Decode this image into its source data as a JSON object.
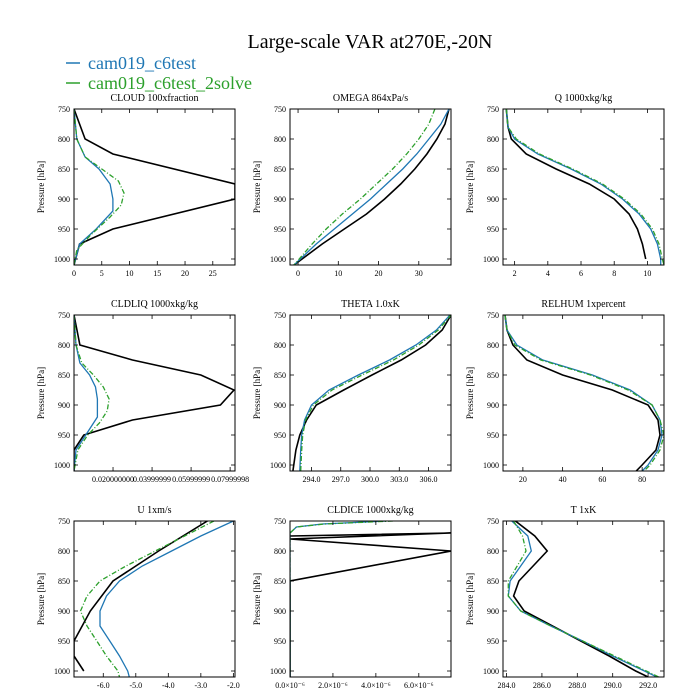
{
  "title": "Large-scale VAR at270E,-20N",
  "legend": [
    {
      "label": "cam019_c6test",
      "color": "#1f77b4"
    },
    {
      "label": "cam019_c6test_2solve",
      "color": "#2ca02c"
    }
  ],
  "black_color": "#000000",
  "chart_data": [
    {
      "type": "line",
      "title": "CLOUD  100xfraction",
      "ylabel": "Pressure [hPa]",
      "ylim": [
        1010,
        750
      ],
      "yticks": [
        750,
        800,
        850,
        900,
        950,
        1000
      ],
      "xlim": [
        0,
        29
      ],
      "xticks": [
        0,
        5,
        10,
        15,
        20,
        25
      ],
      "xticklabels": [
        "0",
        "5",
        "10",
        "15",
        "20",
        "25"
      ],
      "series": [
        {
          "name": "black",
          "p": [
            750,
            800,
            825,
            875,
            900,
            950,
            975,
            1010
          ],
          "x": [
            0,
            2,
            7,
            29,
            29,
            7,
            1,
            0
          ]
        },
        {
          "name": "blue",
          "p": [
            750,
            800,
            830,
            850,
            875,
            900,
            920,
            950,
            975,
            1010
          ],
          "x": [
            0,
            0.5,
            2,
            4.5,
            6.5,
            7,
            7,
            4,
            1,
            0
          ]
        },
        {
          "name": "green",
          "p": [
            750,
            800,
            830,
            850,
            870,
            890,
            910,
            930,
            960,
            985,
            1010
          ],
          "x": [
            0,
            0.5,
            2,
            5,
            8,
            9,
            8.5,
            6.5,
            3,
            0.5,
            0
          ]
        }
      ]
    },
    {
      "type": "line",
      "title": "OMEGA  864xPa/s",
      "ylabel": "Pressure [hPa]",
      "ylim": [
        1010,
        750
      ],
      "yticks": [
        750,
        800,
        850,
        900,
        950,
        1000
      ],
      "xlim": [
        -2,
        38
      ],
      "xticks": [
        0,
        10,
        20,
        30
      ],
      "xticklabels": [
        "0",
        "10",
        "20",
        "30"
      ],
      "series": [
        {
          "name": "black",
          "p": [
            750,
            775,
            800,
            825,
            850,
            875,
            900,
            925,
            950,
            975,
            1010
          ],
          "x": [
            37.5,
            36.5,
            34.5,
            32,
            29,
            25.5,
            21.5,
            17,
            11.5,
            6,
            -1
          ]
        },
        {
          "name": "blue",
          "p": [
            750,
            775,
            800,
            825,
            850,
            875,
            900,
            925,
            950,
            975,
            1010
          ],
          "x": [
            37.5,
            35.5,
            32.5,
            29.5,
            26,
            22,
            18,
            13.5,
            9,
            4.5,
            -1
          ]
        },
        {
          "name": "green",
          "p": [
            750,
            775,
            800,
            825,
            850,
            875,
            900,
            925,
            950,
            975,
            1010
          ],
          "x": [
            34,
            32.5,
            30,
            27,
            23.5,
            19.5,
            15.5,
            11,
            7,
            3.5,
            -1
          ]
        }
      ]
    },
    {
      "type": "line",
      "title": "Q  1000xkg/kg",
      "ylabel": "Pressure [hPa]",
      "ylim": [
        1010,
        750
      ],
      "yticks": [
        750,
        800,
        850,
        900,
        950,
        1000
      ],
      "xlim": [
        1.3,
        11
      ],
      "xticks": [
        2,
        4,
        6,
        8,
        10
      ],
      "xticklabels": [
        "2",
        "4",
        "6",
        "8",
        "10"
      ],
      "series": [
        {
          "name": "black",
          "p": [
            750,
            780,
            800,
            825,
            850,
            875,
            900,
            925,
            950,
            975,
            1000
          ],
          "x": [
            1.5,
            1.6,
            1.8,
            2.7,
            4.5,
            6.5,
            8,
            8.9,
            9.4,
            9.7,
            9.9
          ]
        },
        {
          "name": "blue",
          "p": [
            750,
            780,
            800,
            825,
            850,
            875,
            900,
            925,
            950,
            975,
            1000,
            1010
          ],
          "x": [
            1.5,
            1.6,
            2,
            3.4,
            5.4,
            7.2,
            8.5,
            9.5,
            10.2,
            10.6,
            10.8,
            10.8
          ]
        },
        {
          "name": "green",
          "p": [
            750,
            780,
            800,
            825,
            850,
            875,
            900,
            925,
            950,
            975,
            1000,
            1010
          ],
          "x": [
            1.5,
            1.6,
            2.1,
            3.5,
            5.5,
            7.3,
            8.6,
            9.6,
            10.3,
            10.7,
            10.9,
            11
          ]
        }
      ]
    },
    {
      "type": "line",
      "title": "CLDLIQ  1000xkg/kg",
      "ylabel": "Pressure [hPa]",
      "ylim": [
        1010,
        750
      ],
      "yticks": [
        750,
        800,
        850,
        900,
        950,
        1000
      ],
      "xlim": [
        0,
        0.0825
      ],
      "xticks": [
        0.02,
        0.04,
        0.06,
        0.08
      ],
      "xticklabels": [
        "0.020000000",
        "0.03999999",
        "0.05999999",
        "0.07999998"
      ],
      "series": [
        {
          "name": "black",
          "p": [
            750,
            800,
            825,
            850,
            875,
            900,
            925,
            950,
            975,
            1010
          ],
          "x": [
            0,
            0.003,
            0.03,
            0.065,
            0.082,
            0.075,
            0.03,
            0.005,
            0,
            0
          ]
        },
        {
          "name": "blue",
          "p": [
            750,
            800,
            830,
            850,
            870,
            890,
            920,
            945,
            975,
            1010
          ],
          "x": [
            0,
            0.001,
            0.003,
            0.008,
            0.011,
            0.012,
            0.012,
            0.007,
            0.001,
            0
          ]
        },
        {
          "name": "green",
          "p": [
            750,
            800,
            830,
            850,
            870,
            890,
            910,
            930,
            950,
            975,
            1010
          ],
          "x": [
            0,
            0.001,
            0.004,
            0.01,
            0.015,
            0.018,
            0.017,
            0.013,
            0.007,
            0.002,
            0
          ]
        }
      ]
    },
    {
      "type": "line",
      "title": "THETA  1.0xK",
      "ylabel": "Pressure [hPa]",
      "ylim": [
        1010,
        750
      ],
      "yticks": [
        750,
        800,
        850,
        900,
        950,
        1000
      ],
      "xlim": [
        291.8,
        308.3
      ],
      "xticks": [
        294.0,
        297.0,
        300.0,
        303.0,
        306.0
      ],
      "xticklabels": [
        "294.0",
        "297.0",
        "300.0",
        "303.0",
        "306.0"
      ],
      "series": [
        {
          "name": "black",
          "p": [
            1010,
            975,
            950,
            925,
            900,
            875,
            850,
            825,
            800,
            775,
            750
          ],
          "x": [
            292.1,
            292.4,
            292.8,
            293.5,
            294.5,
            297.3,
            300.2,
            303.2,
            305.7,
            307.4,
            308.3
          ]
        },
        {
          "name": "blue",
          "p": [
            1010,
            975,
            950,
            925,
            900,
            875,
            850,
            825,
            800,
            775,
            750
          ],
          "x": [
            292.8,
            292.9,
            293.0,
            293.3,
            294.0,
            295.8,
            298.8,
            302,
            304.7,
            306.8,
            308.2
          ]
        },
        {
          "name": "green",
          "p": [
            1010,
            975,
            950,
            925,
            900,
            875,
            850,
            825,
            800,
            775,
            750
          ],
          "x": [
            292.9,
            293.0,
            293.1,
            293.4,
            294.2,
            296.1,
            299.2,
            302.4,
            305,
            307,
            308.3
          ]
        }
      ]
    },
    {
      "type": "line",
      "title": "RELHUM  1xpercent",
      "ylabel": "Pressure [hPa]",
      "ylim": [
        1010,
        750
      ],
      "yticks": [
        750,
        800,
        850,
        900,
        950,
        1000
      ],
      "xlim": [
        10,
        91
      ],
      "xticks": [
        20,
        40,
        60,
        80
      ],
      "xticklabels": [
        "20",
        "40",
        "60",
        "80"
      ],
      "series": [
        {
          "name": "black",
          "p": [
            750,
            775,
            800,
            825,
            850,
            875,
            900,
            925,
            950,
            975,
            1000,
            1010
          ],
          "x": [
            11,
            12,
            15,
            22,
            40,
            65,
            83,
            88,
            89,
            87,
            80,
            77
          ]
        },
        {
          "name": "blue",
          "p": [
            750,
            775,
            800,
            825,
            850,
            875,
            900,
            925,
            950,
            975,
            1000,
            1010
          ],
          "x": [
            11,
            12,
            17,
            30,
            55,
            74,
            85,
            89,
            90,
            88,
            83,
            80
          ]
        },
        {
          "name": "green",
          "p": [
            750,
            775,
            800,
            825,
            850,
            875,
            900,
            925,
            950,
            975,
            1000,
            1010
          ],
          "x": [
            11,
            12,
            16,
            29,
            54,
            73,
            85,
            89,
            91,
            89,
            84,
            81
          ]
        }
      ]
    },
    {
      "type": "line",
      "title": "U  1xm/s",
      "ylabel": "Pressure [hPa]",
      "ylim": [
        1010,
        750
      ],
      "yticks": [
        750,
        800,
        850,
        900,
        950,
        1000
      ],
      "xlim": [
        -6.9,
        -1.95
      ],
      "xticks": [
        -6.0,
        -5.0,
        -4.0,
        -3.0,
        -2.0
      ],
      "xticklabels": [
        "-6.0",
        "-5.0",
        "-4.0",
        "-3.0",
        "-2.0"
      ],
      "series": [
        {
          "name": "black",
          "p": [
            750,
            800,
            850,
            900,
            950,
            975,
            1000
          ],
          "x": [
            -2.8,
            -4.3,
            -5.7,
            -6.4,
            -6.9,
            -6.9,
            -6.6
          ]
        },
        {
          "name": "blue",
          "p": [
            750,
            775,
            800,
            825,
            850,
            875,
            900,
            925,
            950,
            975,
            1000,
            1010
          ],
          "x": [
            -2.0,
            -3.0,
            -3.9,
            -4.8,
            -5.5,
            -5.9,
            -6.1,
            -6.1,
            -5.8,
            -5.5,
            -5.25,
            -5.2
          ]
        },
        {
          "name": "green",
          "p": [
            750,
            775,
            800,
            825,
            850,
            875,
            900,
            925,
            950,
            975,
            1000,
            1010
          ],
          "x": [
            -2.6,
            -3.5,
            -4.4,
            -5.3,
            -6.1,
            -6.5,
            -6.7,
            -6.5,
            -6.2,
            -5.9,
            -5.55,
            -5.5
          ]
        }
      ]
    },
    {
      "type": "line",
      "title": "CLDICE  1000xkg/kg",
      "ylabel": "Pressure [hPa]",
      "ylim": [
        1010,
        750
      ],
      "yticks": [
        750,
        800,
        850,
        900,
        950,
        1000
      ],
      "xlim": [
        0,
        7.5e-06
      ],
      "xticks": [
        0,
        2e-06,
        4e-06,
        6e-06
      ],
      "xticklabels": [
        "0.0×10⁻⁶",
        "2.0×10⁻⁶",
        "4.0×10⁻⁶",
        "6.0×10⁻⁶"
      ],
      "series": [
        {
          "name": "black",
          "p": [
            775,
            770,
            780,
            800,
            850,
            870,
            1010
          ],
          "x": [
            0,
            7.5e-06,
            0,
            7.5e-06,
            0,
            0,
            0
          ]
        },
        {
          "name": "blue",
          "p": [
            750,
            755,
            760,
            770,
            1010
          ],
          "x": [
            4.5e-06,
            1.5e-06,
            3e-07,
            0,
            0
          ]
        },
        {
          "name": "green",
          "p": [
            750,
            755,
            760,
            770,
            1010
          ],
          "x": [
            4.8e-06,
            1.6e-06,
            3e-07,
            0,
            0
          ]
        }
      ]
    },
    {
      "type": "line",
      "title": "T  1xK",
      "ylabel": "Pressure [hPa]",
      "ylim": [
        1010,
        750
      ],
      "yticks": [
        750,
        800,
        850,
        900,
        950,
        1000
      ],
      "xlim": [
        283.8,
        292.9
      ],
      "xticks": [
        284.0,
        286.0,
        288.0,
        290.0,
        292.0
      ],
      "xticklabels": [
        "284.0",
        "286.0",
        "288.0",
        "290.0",
        "292.0"
      ],
      "series": [
        {
          "name": "black",
          "p": [
            750,
            775,
            800,
            825,
            850,
            875,
            900,
            925,
            950,
            975,
            1000,
            1010
          ],
          "x": [
            284.5,
            285.6,
            286.3,
            285.5,
            284.7,
            284.4,
            285,
            286.6,
            288.2,
            289.8,
            291.3,
            292.0
          ]
        },
        {
          "name": "blue",
          "p": [
            750,
            775,
            800,
            825,
            850,
            875,
            900,
            925,
            950,
            975,
            1000,
            1010
          ],
          "x": [
            284.3,
            285.2,
            285.4,
            284.8,
            284.2,
            284.1,
            284.8,
            286.5,
            288.3,
            290,
            291.8,
            292.5
          ]
        },
        {
          "name": "green",
          "p": [
            750,
            775,
            800,
            825,
            850,
            875,
            900,
            925,
            950,
            975,
            1000,
            1010
          ],
          "x": [
            284.4,
            284.9,
            285.1,
            284.6,
            284.1,
            284.1,
            284.8,
            286.5,
            288.3,
            290.1,
            291.9,
            292.6
          ]
        }
      ]
    }
  ]
}
